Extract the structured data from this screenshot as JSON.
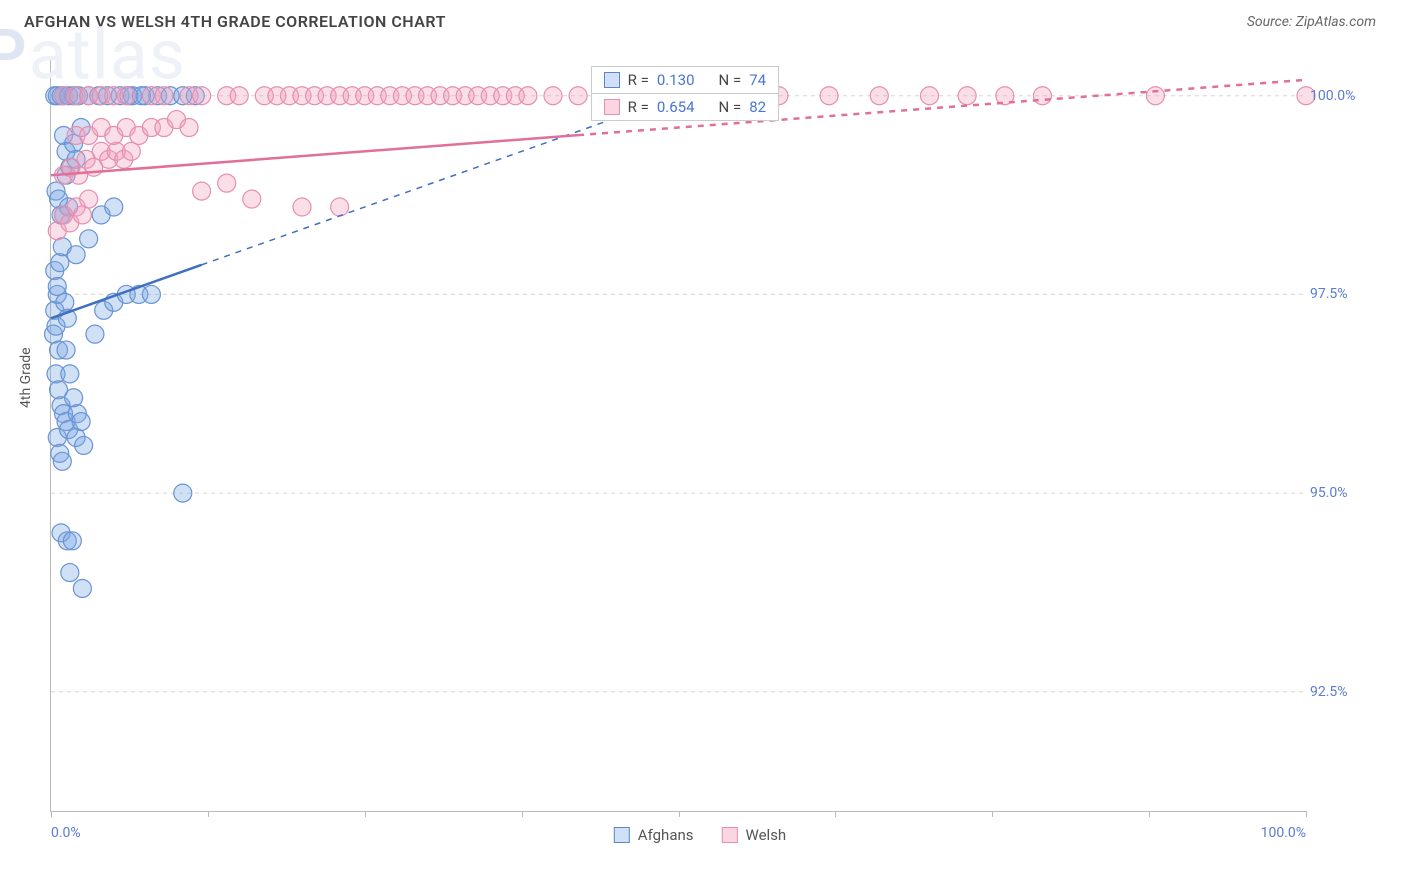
{
  "header": {
    "title": "AFGHAN VS WELSH 4TH GRADE CORRELATION CHART",
    "source": "Source: ZipAtlas.com"
  },
  "y_axis": {
    "label": "4th Grade"
  },
  "axes": {
    "xlim": [
      0,
      100
    ],
    "ylim": [
      91,
      100.5
    ],
    "yticks": [
      {
        "v": 100.0,
        "label": "100.0%"
      },
      {
        "v": 97.5,
        "label": "97.5%"
      },
      {
        "v": 95.0,
        "label": "95.0%"
      },
      {
        "v": 92.5,
        "label": "92.5%"
      }
    ],
    "xticks_minor": [
      0,
      12.5,
      25,
      37.5,
      50,
      62.5,
      75,
      87.5,
      100
    ],
    "xticks_labeled": [
      {
        "v": 0,
        "label": "0.0%"
      },
      {
        "v": 100,
        "label": "100.0%"
      }
    ],
    "grid_color": "#d5d5d5",
    "axis_color": "#bbbbbb"
  },
  "watermark": {
    "text_a": "ZIP",
    "text_b": "atlas"
  },
  "stat_legend": {
    "rows": [
      {
        "swatch_fill": "#cfe0f7",
        "swatch_stroke": "#5b87c7",
        "r_label": "R =",
        "r_value": "0.130",
        "n_label": "N =",
        "n_value": "74"
      },
      {
        "swatch_fill": "#fbd6e2",
        "swatch_stroke": "#e78fb0",
        "r_label": "R =",
        "r_value": "0.654",
        "n_label": "N =",
        "n_value": "82"
      }
    ]
  },
  "bottom_legend": {
    "items": [
      {
        "swatch_fill": "#cfe0f7",
        "swatch_stroke": "#5b87c7",
        "label": "Afghans"
      },
      {
        "swatch_fill": "#fbd6e2",
        "swatch_stroke": "#e78fb0",
        "label": "Welsh"
      }
    ]
  },
  "series": {
    "afghans": {
      "color_fill": "rgba(120,165,225,0.35)",
      "color_stroke": "#6a93d4",
      "marker_r": 9,
      "trend_color": "#3f6fbf",
      "trend_width": 2.5,
      "trend": {
        "x1": 0,
        "y1": 97.2,
        "x2": 50,
        "y2": 100.0,
        "dash_to_x": 50
      },
      "points": [
        [
          0.2,
          97.0
        ],
        [
          0.3,
          97.3
        ],
        [
          0.4,
          97.1
        ],
        [
          0.5,
          97.5
        ],
        [
          0.6,
          96.8
        ],
        [
          0.3,
          100.0
        ],
        [
          0.5,
          100.0
        ],
        [
          0.8,
          100.0
        ],
        [
          1.0,
          100.0
        ],
        [
          1.4,
          100.0
        ],
        [
          1.8,
          100.0
        ],
        [
          2.2,
          100.0
        ],
        [
          3.0,
          100.0
        ],
        [
          3.8,
          100.0
        ],
        [
          4.5,
          100.0
        ],
        [
          5.5,
          100.0
        ],
        [
          6.5,
          100.0
        ],
        [
          7.5,
          100.0
        ],
        [
          8.5,
          100.0
        ],
        [
          9.5,
          100.0
        ],
        [
          10.5,
          100.0
        ],
        [
          11.5,
          100.0
        ],
        [
          0.4,
          98.8
        ],
        [
          0.6,
          98.7
        ],
        [
          0.8,
          98.5
        ],
        [
          1.0,
          98.5
        ],
        [
          1.2,
          99.0
        ],
        [
          1.4,
          98.6
        ],
        [
          1.0,
          99.5
        ],
        [
          1.2,
          99.3
        ],
        [
          1.5,
          99.1
        ],
        [
          1.8,
          99.4
        ],
        [
          2.0,
          99.2
        ],
        [
          2.4,
          99.6
        ],
        [
          0.3,
          97.8
        ],
        [
          0.5,
          97.6
        ],
        [
          0.7,
          97.9
        ],
        [
          0.9,
          98.1
        ],
        [
          1.1,
          97.4
        ],
        [
          1.3,
          97.2
        ],
        [
          0.4,
          96.5
        ],
        [
          0.6,
          96.3
        ],
        [
          0.8,
          96.1
        ],
        [
          1.0,
          96.0
        ],
        [
          1.2,
          95.9
        ],
        [
          0.5,
          95.7
        ],
        [
          0.7,
          95.5
        ],
        [
          0.9,
          95.4
        ],
        [
          1.4,
          95.8
        ],
        [
          2.0,
          95.7
        ],
        [
          2.6,
          95.6
        ],
        [
          3.5,
          97.0
        ],
        [
          4.2,
          97.3
        ],
        [
          5.0,
          97.4
        ],
        [
          6.0,
          97.5
        ],
        [
          7.0,
          97.5
        ],
        [
          8.0,
          97.5
        ],
        [
          2.0,
          98.0
        ],
        [
          3.0,
          98.2
        ],
        [
          4.0,
          98.5
        ],
        [
          5.0,
          98.6
        ],
        [
          0.8,
          94.5
        ],
        [
          1.3,
          94.4
        ],
        [
          1.7,
          94.4
        ],
        [
          1.5,
          94.0
        ],
        [
          2.5,
          93.8
        ],
        [
          10.5,
          95.0
        ],
        [
          1.2,
          96.8
        ],
        [
          1.5,
          96.5
        ],
        [
          1.8,
          96.2
        ],
        [
          2.1,
          96.0
        ],
        [
          2.4,
          95.9
        ],
        [
          6.2,
          100.0
        ],
        [
          7.2,
          100.0
        ]
      ]
    },
    "welsh": {
      "color_fill": "rgba(240,160,190,0.35)",
      "color_stroke": "#e58fb0",
      "marker_r": 9,
      "trend_color": "#e06f9a",
      "trend_width": 2.5,
      "trend": {
        "x1": 0,
        "y1": 99.0,
        "x2": 100,
        "y2": 100.2,
        "dash_to_x": 42
      },
      "points": [
        [
          0.5,
          98.3
        ],
        [
          1.0,
          98.5
        ],
        [
          1.5,
          98.4
        ],
        [
          2.0,
          98.6
        ],
        [
          2.5,
          98.5
        ],
        [
          3.0,
          98.7
        ],
        [
          1.0,
          99.0
        ],
        [
          1.6,
          99.1
        ],
        [
          2.2,
          99.0
        ],
        [
          2.8,
          99.2
        ],
        [
          3.4,
          99.1
        ],
        [
          4.0,
          99.3
        ],
        [
          4.6,
          99.2
        ],
        [
          5.2,
          99.3
        ],
        [
          5.8,
          99.2
        ],
        [
          6.4,
          99.3
        ],
        [
          2.0,
          99.5
        ],
        [
          3.0,
          99.5
        ],
        [
          4.0,
          99.6
        ],
        [
          5.0,
          99.5
        ],
        [
          6.0,
          99.6
        ],
        [
          7.0,
          99.5
        ],
        [
          8.0,
          99.6
        ],
        [
          9.0,
          99.6
        ],
        [
          10.0,
          99.7
        ],
        [
          11.0,
          99.6
        ],
        [
          1,
          100.0
        ],
        [
          2,
          100.0
        ],
        [
          3,
          100.0
        ],
        [
          4,
          100.0
        ],
        [
          5,
          100.0
        ],
        [
          6,
          100.0
        ],
        [
          8,
          100.0
        ],
        [
          9,
          100.0
        ],
        [
          11,
          100.0
        ],
        [
          12,
          100.0
        ],
        [
          14,
          100.0
        ],
        [
          15,
          100.0
        ],
        [
          17,
          100.0
        ],
        [
          18,
          100.0
        ],
        [
          19,
          100.0
        ],
        [
          20,
          100.0
        ],
        [
          21,
          100.0
        ],
        [
          22,
          100.0
        ],
        [
          23,
          100.0
        ],
        [
          24,
          100.0
        ],
        [
          25,
          100.0
        ],
        [
          26,
          100.0
        ],
        [
          27,
          100.0
        ],
        [
          28,
          100.0
        ],
        [
          29,
          100.0
        ],
        [
          30,
          100.0
        ],
        [
          31,
          100.0
        ],
        [
          32,
          100.0
        ],
        [
          33,
          100.0
        ],
        [
          34,
          100.0
        ],
        [
          35,
          100.0
        ],
        [
          36,
          100.0
        ],
        [
          37,
          100.0
        ],
        [
          38,
          100.0
        ],
        [
          40,
          100.0
        ],
        [
          42,
          100.0
        ],
        [
          44,
          100.0
        ],
        [
          46,
          100.0
        ],
        [
          48,
          100.0
        ],
        [
          50,
          100.0
        ],
        [
          52,
          100.0
        ],
        [
          55,
          100.0
        ],
        [
          58,
          100.0
        ],
        [
          62,
          100.0
        ],
        [
          66,
          100.0
        ],
        [
          70,
          100.0
        ],
        [
          73,
          100.0
        ],
        [
          76,
          100.0
        ],
        [
          79,
          100.0
        ],
        [
          88,
          100.0
        ],
        [
          100,
          100.0
        ],
        [
          12,
          98.8
        ],
        [
          14,
          98.9
        ],
        [
          16,
          98.7
        ],
        [
          20,
          98.6
        ],
        [
          23,
          98.6
        ]
      ]
    }
  }
}
